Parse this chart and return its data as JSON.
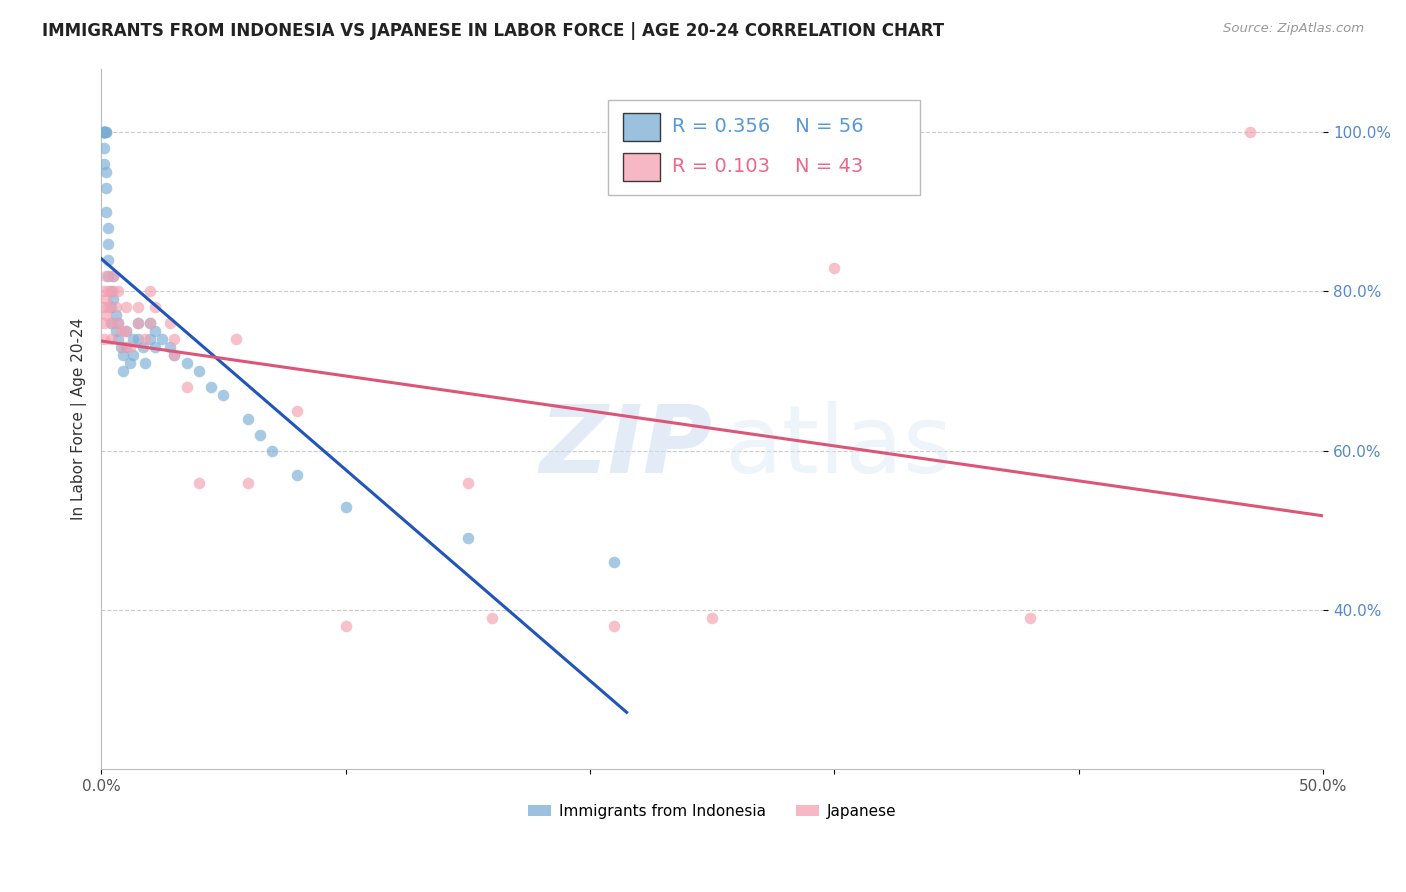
{
  "title": "IMMIGRANTS FROM INDONESIA VS JAPANESE IN LABOR FORCE | AGE 20-24 CORRELATION CHART",
  "source": "Source: ZipAtlas.com",
  "ylabel": "In Labor Force | Age 20-24",
  "xlim": [
    0.0,
    0.5
  ],
  "ylim": [
    0.2,
    1.08
  ],
  "xtick_labels": [
    "0.0%",
    "",
    "",
    "",
    "",
    "50.0%"
  ],
  "xtick_values": [
    0.0,
    0.1,
    0.2,
    0.3,
    0.4,
    0.5
  ],
  "ytick_labels": [
    "40.0%",
    "60.0%",
    "80.0%",
    "100.0%"
  ],
  "ytick_values": [
    0.4,
    0.6,
    0.8,
    1.0
  ],
  "grid_color": "#cccccc",
  "background_color": "#ffffff",
  "watermark_zip": "ZIP",
  "watermark_atlas": "atlas",
  "legend_r1": "R = 0.356",
  "legend_n1": "N = 56",
  "legend_r2": "R = 0.103",
  "legend_n2": "N = 43",
  "color_indonesia": "#7aadd4",
  "color_japanese": "#f4a0b0",
  "trendline_color_indonesia": "#2255bb",
  "trendline_color_japanese": "#dd5577",
  "scatter_alpha": 0.65,
  "scatter_size": 70,
  "indo_x": [
    0.001,
    0.001,
    0.001,
    0.001,
    0.001,
    0.001,
    0.001,
    0.001,
    0.002,
    0.002,
    0.002,
    0.002,
    0.002,
    0.003,
    0.003,
    0.003,
    0.003,
    0.004,
    0.004,
    0.004,
    0.005,
    0.005,
    0.006,
    0.006,
    0.007,
    0.007,
    0.008,
    0.009,
    0.009,
    0.01,
    0.01,
    0.012,
    0.013,
    0.013,
    0.015,
    0.015,
    0.017,
    0.018,
    0.02,
    0.02,
    0.022,
    0.022,
    0.025,
    0.028,
    0.03,
    0.035,
    0.04,
    0.045,
    0.05,
    0.06,
    0.065,
    0.07,
    0.08,
    0.1,
    0.15,
    0.21
  ],
  "indo_y": [
    1.0,
    1.0,
    1.0,
    1.0,
    1.0,
    1.0,
    0.98,
    0.96,
    1.0,
    1.0,
    0.95,
    0.93,
    0.9,
    0.88,
    0.86,
    0.84,
    0.82,
    0.8,
    0.78,
    0.76,
    0.82,
    0.79,
    0.77,
    0.75,
    0.76,
    0.74,
    0.73,
    0.72,
    0.7,
    0.75,
    0.73,
    0.71,
    0.74,
    0.72,
    0.76,
    0.74,
    0.73,
    0.71,
    0.76,
    0.74,
    0.75,
    0.73,
    0.74,
    0.73,
    0.72,
    0.71,
    0.7,
    0.68,
    0.67,
    0.64,
    0.62,
    0.6,
    0.57,
    0.53,
    0.49,
    0.46
  ],
  "jap_x": [
    0.001,
    0.001,
    0.001,
    0.001,
    0.002,
    0.002,
    0.002,
    0.003,
    0.003,
    0.004,
    0.004,
    0.005,
    0.005,
    0.006,
    0.007,
    0.007,
    0.008,
    0.009,
    0.01,
    0.01,
    0.012,
    0.015,
    0.015,
    0.018,
    0.02,
    0.02,
    0.022,
    0.028,
    0.03,
    0.03,
    0.035,
    0.04,
    0.055,
    0.06,
    0.08,
    0.1,
    0.15,
    0.16,
    0.21,
    0.25,
    0.3,
    0.38,
    0.47
  ],
  "jap_y": [
    0.8,
    0.78,
    0.76,
    0.74,
    0.82,
    0.79,
    0.77,
    0.8,
    0.78,
    0.76,
    0.74,
    0.82,
    0.8,
    0.78,
    0.8,
    0.76,
    0.75,
    0.73,
    0.78,
    0.75,
    0.73,
    0.78,
    0.76,
    0.74,
    0.8,
    0.76,
    0.78,
    0.76,
    0.74,
    0.72,
    0.68,
    0.56,
    0.74,
    0.56,
    0.65,
    0.38,
    0.56,
    0.39,
    0.38,
    0.39,
    0.83,
    0.39,
    1.0
  ]
}
